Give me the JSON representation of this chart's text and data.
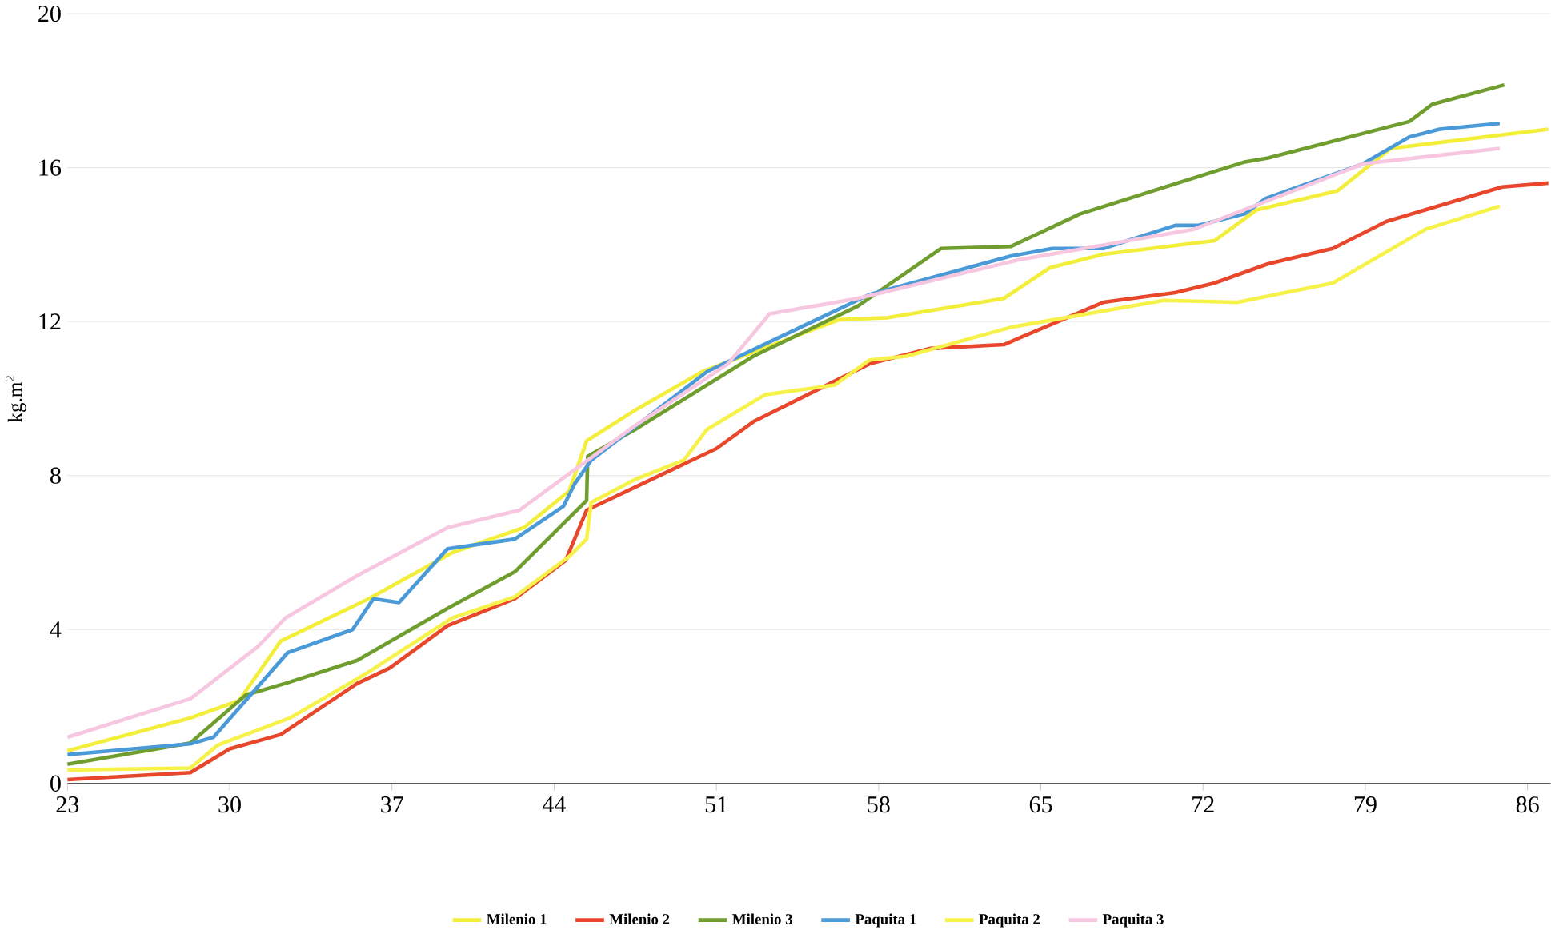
{
  "chart_data": {
    "type": "line",
    "ylabel": "kg.m$^{2}$",
    "xlim": [
      23,
      87
    ],
    "xticks": [
      23,
      30,
      37,
      44,
      51,
      58,
      65,
      72,
      79,
      86
    ],
    "ylim": [
      0,
      20
    ],
    "yticks": [
      0,
      4,
      8,
      12,
      16,
      20
    ],
    "grid": "y",
    "legend": "bottom",
    "marker": "none",
    "line_style": "solid",
    "series": [
      {
        "name": "Milenio 1",
        "color": "#f2ee3a",
        "x": [
          23,
          28.3,
          30.4,
          32.2,
          36,
          39.6,
          42.7,
          44.65,
          45.4,
          47.5,
          50.4,
          56.3,
          58.4,
          63.4,
          65.4,
          67.7,
          72.5,
          74.3,
          77.8,
          80.1,
          86.9
        ],
        "values": [
          0.85,
          1.7,
          2.15,
          3.7,
          4.8,
          6.0,
          6.65,
          7.6,
          8.9,
          9.7,
          10.7,
          12.05,
          12.1,
          12.6,
          13.4,
          13.75,
          14.1,
          14.9,
          15.4,
          16.5,
          17.0
        ]
      },
      {
        "name": "Milenio 2",
        "color": "#e8472b",
        "x": [
          23,
          28.3,
          30,
          32.2,
          35.5,
          36.9,
          39.4,
          42.3,
          44.5,
          45.4,
          47.5,
          51,
          52.6,
          57.6,
          60.2,
          63.4,
          67.7,
          70.8,
          72.5,
          74.8,
          77.6,
          79.9,
          84.9,
          86.9
        ],
        "values": [
          0.1,
          0.28,
          0.9,
          1.27,
          2.6,
          3.0,
          4.1,
          4.8,
          5.8,
          7.1,
          7.7,
          8.7,
          9.4,
          10.9,
          11.3,
          11.4,
          12.5,
          12.75,
          13.0,
          13.5,
          13.9,
          14.6,
          15.5,
          15.6
        ]
      },
      {
        "name": "Milenio 3",
        "color": "#6f9e2f",
        "x": [
          23,
          28.3,
          30.7,
          32.4,
          35.5,
          39.4,
          42.3,
          45.4,
          45.45,
          47.5,
          52.6,
          57.1,
          60.7,
          63.7,
          66.7,
          73.8,
          74.8,
          80.9,
          81.9,
          85
        ],
        "values": [
          0.5,
          1.05,
          2.3,
          2.6,
          3.2,
          4.55,
          5.5,
          7.35,
          8.5,
          9.2,
          11.1,
          12.4,
          13.9,
          13.95,
          14.8,
          16.15,
          16.25,
          17.2,
          17.65,
          18.15
        ]
      },
      {
        "name": "Paquita 1",
        "color": "#4a9ad8",
        "x": [
          23,
          28.3,
          29.3,
          32.5,
          35.3,
          36.2,
          37.3,
          39.4,
          42.3,
          44.4,
          44.9,
          45.6,
          50.6,
          57.6,
          63.7,
          65.5,
          67.7,
          70.8,
          71.8,
          73.8,
          74.7,
          78.9,
          80.9,
          82.2,
          84.8
        ],
        "values": [
          0.75,
          1.03,
          1.2,
          3.4,
          4.0,
          4.8,
          4.7,
          6.1,
          6.35,
          7.2,
          7.8,
          8.4,
          10.7,
          12.7,
          13.7,
          13.9,
          13.9,
          14.5,
          14.5,
          14.8,
          15.2,
          16.1,
          16.8,
          17.0,
          17.15
        ]
      },
      {
        "name": "Paquita 2",
        "color": "#f7f24a",
        "x": [
          23,
          28.3,
          29.5,
          32.6,
          36,
          39.6,
          42.3,
          44.65,
          45.4,
          45.6,
          47.5,
          49.6,
          50.6,
          53.1,
          56.1,
          57.6,
          59.2,
          63.7,
          70.3,
          73.5,
          77.6,
          81.6,
          84.8
        ],
        "values": [
          0.35,
          0.4,
          1.0,
          1.7,
          2.9,
          4.3,
          4.85,
          5.9,
          6.35,
          7.3,
          7.9,
          8.4,
          9.2,
          10.1,
          10.35,
          11.0,
          11.1,
          11.85,
          12.55,
          12.5,
          13.0,
          14.4,
          15.0
        ]
      },
      {
        "name": "Paquita 3",
        "color": "#f7c6e0",
        "x": [
          23,
          28.3,
          31.2,
          32.4,
          35.5,
          39.4,
          42.5,
          44.65,
          47.5,
          51.5,
          53.3,
          57.1,
          64,
          71.6,
          78.9,
          84.8
        ],
        "values": [
          1.2,
          2.2,
          3.55,
          4.3,
          5.4,
          6.65,
          7.1,
          8.05,
          9.3,
          10.9,
          12.2,
          12.6,
          13.6,
          14.4,
          16.1,
          16.5
        ]
      }
    ]
  }
}
